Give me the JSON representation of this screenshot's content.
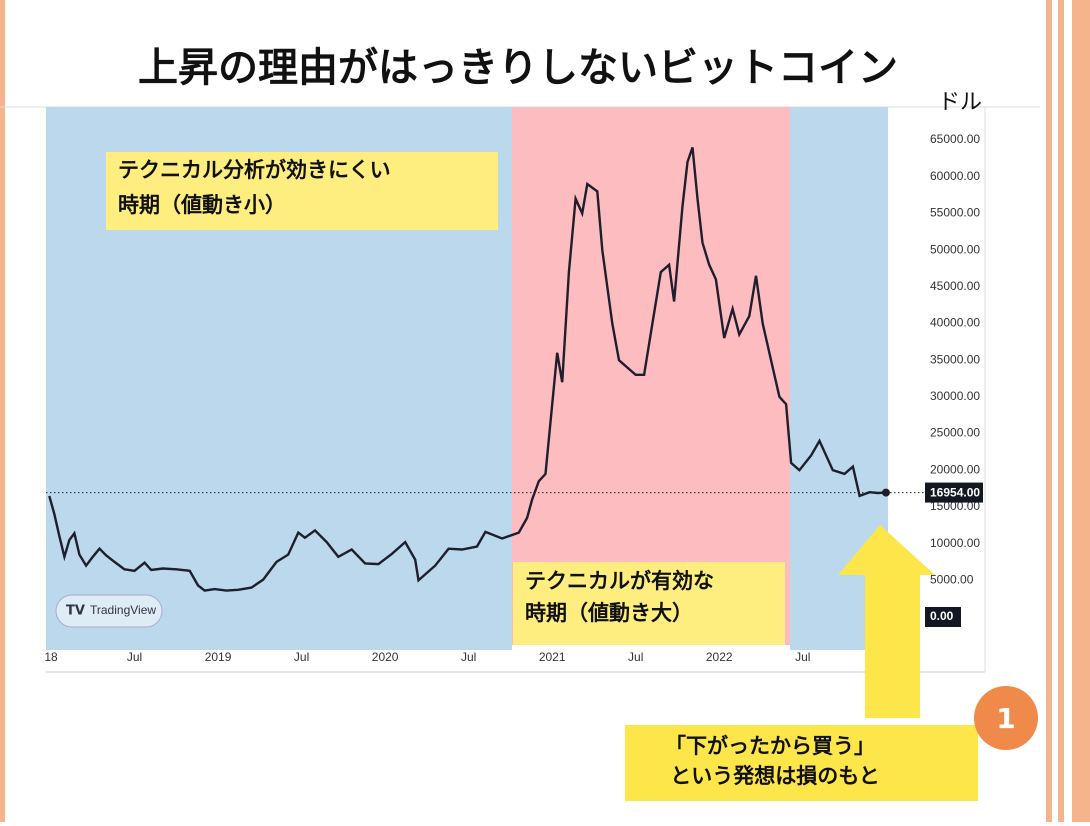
{
  "title": "上昇の理由がはっきりしないビットコイン",
  "chart_data": {
    "type": "line",
    "unit": "ドル",
    "watermark": "TradingView",
    "x": [
      2017.99,
      2018.02,
      2018.05,
      2018.08,
      2018.11,
      2018.14,
      2018.17,
      2018.21,
      2018.25,
      2018.29,
      2018.33,
      2018.38,
      2018.44,
      2018.5,
      2018.56,
      2018.6,
      2018.67,
      2018.75,
      2018.83,
      2018.88,
      2018.92,
      2018.98,
      2019.05,
      2019.12,
      2019.2,
      2019.27,
      2019.35,
      2019.42,
      2019.48,
      2019.52,
      2019.58,
      2019.65,
      2019.72,
      2019.8,
      2019.88,
      2019.96,
      2020.04,
      2020.12,
      2020.18,
      2020.2,
      2020.3,
      2020.38,
      2020.46,
      2020.55,
      2020.6,
      2020.7,
      2020.8,
      2020.85,
      2020.88,
      2020.92,
      2020.96,
      2021.0,
      2021.03,
      2021.06,
      2021.1,
      2021.14,
      2021.18,
      2021.21,
      2021.27,
      2021.3,
      2021.36,
      2021.4,
      2021.45,
      2021.5,
      2021.55,
      2021.6,
      2021.65,
      2021.7,
      2021.73,
      2021.78,
      2021.81,
      2021.84,
      2021.87,
      2021.9,
      2021.94,
      2021.98,
      2022.03,
      2022.08,
      2022.12,
      2022.18,
      2022.22,
      2022.26,
      2022.32,
      2022.36,
      2022.4,
      2022.43,
      2022.48,
      2022.55,
      2022.6,
      2022.68,
      2022.75,
      2022.8,
      2022.84,
      2022.9,
      2022.95,
      2022.998
    ],
    "series": [
      {
        "name": "BTC",
        "color": "#1e1e2c",
        "values": [
          16500,
          14000,
          11000,
          8200,
          10500,
          11400,
          8500,
          7000,
          8200,
          9300,
          8400,
          7500,
          6500,
          6300,
          7400,
          6400,
          6600,
          6500,
          6300,
          4300,
          3600,
          3800,
          3600,
          3700,
          4000,
          5100,
          7500,
          8500,
          11500,
          10800,
          11800,
          10200,
          8200,
          9200,
          7300,
          7200,
          8600,
          10200,
          7800,
          5000,
          7000,
          9300,
          9200,
          9600,
          11600,
          10700,
          11500,
          13500,
          16000,
          18500,
          19500,
          29000,
          36000,
          32000,
          47000,
          57000,
          55000,
          59000,
          58000,
          50000,
          40000,
          35000,
          34000,
          33000,
          33000,
          40000,
          47000,
          48000,
          43000,
          56000,
          62000,
          64000,
          57000,
          51000,
          48000,
          46000,
          38000,
          42000,
          38500,
          41000,
          46500,
          40000,
          34000,
          30000,
          29000,
          21000,
          20000,
          22000,
          24000,
          20000,
          19500,
          20500,
          16500,
          17000,
          16900,
          16954
        ]
      }
    ],
    "last_price": {
      "value": 16954,
      "label": "16954.00"
    },
    "xlim": [
      2017.97,
      2023.13
    ],
    "xticks": [
      {
        "value": 2018,
        "label": "18"
      },
      {
        "value": 2018.5,
        "label": "Jul"
      },
      2019,
      {
        "value": 2019.5,
        "label": "Jul"
      },
      2020,
      {
        "value": 2020.5,
        "label": "Jul"
      },
      2021,
      {
        "value": 2021.5,
        "label": "Jul"
      },
      2022,
      {
        "value": 2022.5,
        "label": "Jul"
      }
    ],
    "ylim": [
      -4500,
      69500
    ],
    "yticks": [
      {
        "value": 0,
        "label": "0.00"
      },
      {
        "value": 5000,
        "label": "5000.00"
      },
      {
        "value": 10000,
        "label": "10000.00"
      },
      {
        "value": 15000,
        "label": "15000.00"
      },
      {
        "value": 20000,
        "label": "20000.00"
      },
      {
        "value": 25000,
        "label": "25000.00"
      },
      {
        "value": 30000,
        "label": "30000.00"
      },
      {
        "value": 35000,
        "label": "35000.00"
      },
      {
        "value": 40000,
        "label": "40000.00"
      },
      {
        "value": 45000,
        "label": "45000.00"
      },
      {
        "value": 50000,
        "label": "50000.00"
      },
      {
        "value": 55000,
        "label": "55000.00"
      },
      {
        "value": 60000,
        "label": "60000.00"
      },
      {
        "value": 65000,
        "label": "65000.00"
      }
    ],
    "annotations": [
      {
        "lines": [
          "テクニカル分析が効きにくい",
          "時期（値動き小）"
        ]
      },
      {
        "lines": [
          "テクニカルが有効な",
          "時期（値動き大）"
        ]
      }
    ]
  },
  "callout": {
    "badge": "1",
    "lines": [
      "「下がったから買う」",
      "という発想は損のもと"
    ]
  }
}
